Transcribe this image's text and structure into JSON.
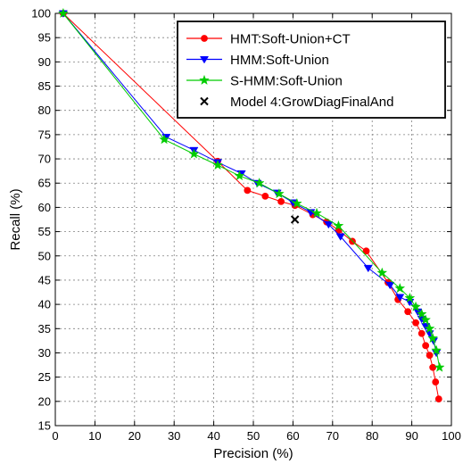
{
  "chart_data": {
    "type": "line",
    "title": "",
    "xlabel": "Precision (%)",
    "ylabel": "Recall (%)",
    "xlim": [
      0,
      100
    ],
    "ylim": [
      15,
      100
    ],
    "xticks": [
      0,
      10,
      20,
      30,
      40,
      50,
      60,
      70,
      80,
      90,
      100
    ],
    "yticks": [
      15,
      20,
      25,
      30,
      35,
      40,
      45,
      50,
      55,
      60,
      65,
      70,
      75,
      80,
      85,
      90,
      95,
      100
    ],
    "grid": true,
    "legend_position": "top-right",
    "series": [
      {
        "name": "HMT:Soft-Union+CT",
        "color": "#ff0000",
        "marker": "circle",
        "line": true,
        "points": [
          [
            2,
            100
          ],
          [
            41,
            69.5
          ],
          [
            48.5,
            63.5
          ],
          [
            53,
            62.3
          ],
          [
            57,
            61.2
          ],
          [
            60.5,
            60.4
          ],
          [
            65,
            58.5
          ],
          [
            68.5,
            57
          ],
          [
            71.5,
            55.3
          ],
          [
            75,
            53
          ],
          [
            78.5,
            51
          ],
          [
            84,
            44.5
          ],
          [
            86.5,
            41
          ],
          [
            89,
            38.5
          ],
          [
            91,
            36.2
          ],
          [
            92.5,
            34
          ],
          [
            93.5,
            31.5
          ],
          [
            94.5,
            29.5
          ],
          [
            95.3,
            27
          ],
          [
            96,
            24
          ],
          [
            96.8,
            20.5
          ]
        ]
      },
      {
        "name": "HMM:Soft-Union",
        "color": "#0000ff",
        "marker": "triangle-down",
        "line": true,
        "points": [
          [
            2,
            100
          ],
          [
            28,
            74.5
          ],
          [
            35,
            71.8
          ],
          [
            41,
            69.3
          ],
          [
            47,
            67
          ],
          [
            51,
            65
          ],
          [
            56,
            63
          ],
          [
            60,
            61
          ],
          [
            64.5,
            59
          ],
          [
            69,
            56.5
          ],
          [
            72,
            54
          ],
          [
            79,
            47.5
          ],
          [
            84.5,
            44
          ],
          [
            87,
            41.5
          ],
          [
            89.5,
            40.5
          ],
          [
            91.5,
            38.5
          ],
          [
            92.5,
            37
          ],
          [
            93.5,
            35.5
          ],
          [
            94.5,
            34
          ],
          [
            95.5,
            32.5
          ],
          [
            96.2,
            30
          ]
        ]
      },
      {
        "name": "S-HMM:Soft-Union",
        "color": "#00cc00",
        "marker": "star",
        "line": true,
        "points": [
          [
            2,
            100
          ],
          [
            27.5,
            74
          ],
          [
            35,
            71
          ],
          [
            41,
            68.7
          ],
          [
            46.5,
            66.5
          ],
          [
            51.5,
            65
          ],
          [
            56.5,
            62.8
          ],
          [
            61,
            60.8
          ],
          [
            66,
            58.8
          ],
          [
            71.5,
            56.2
          ],
          [
            82.5,
            46.5
          ],
          [
            87,
            43.3
          ],
          [
            89.5,
            41.3
          ],
          [
            91,
            39.5
          ],
          [
            92.5,
            38
          ],
          [
            93.5,
            36.8
          ],
          [
            94.5,
            35
          ],
          [
            95.3,
            33
          ],
          [
            96.2,
            30.5
          ],
          [
            97,
            27
          ]
        ]
      },
      {
        "name": "Model 4:GrowDiagFinalAnd",
        "color": "#000000",
        "marker": "x",
        "line": false,
        "points": [
          [
            60.5,
            57.5
          ]
        ]
      }
    ]
  }
}
